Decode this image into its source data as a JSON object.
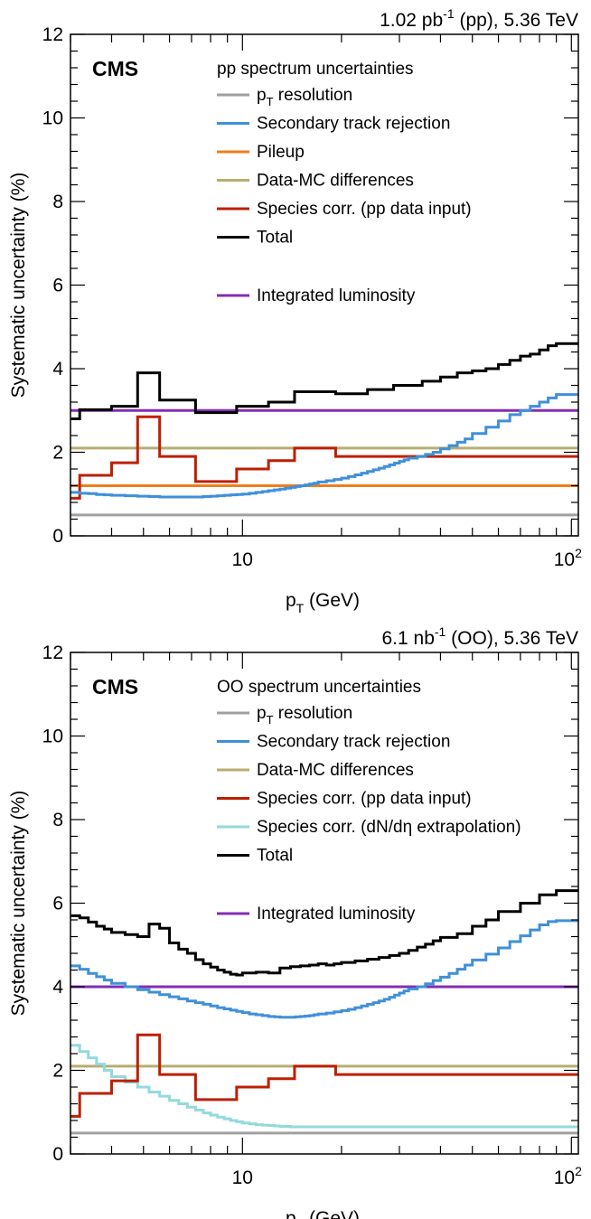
{
  "colors": {
    "pt_resolution": "#a0a0a0",
    "secondary": "#3f90da",
    "pileup": "#f07d1c",
    "datamc": "#b9ac70",
    "species_pp": "#bd1f01",
    "species_dndeta": "#92dadd",
    "total": "#000000",
    "lumi": "#832db6"
  },
  "chart_data": [
    {
      "type": "line",
      "experiment": "CMS",
      "lumi_label": "1.02 pb",
      "lumi_exponent": "-1",
      "lumi_suffix": " (pp), 5.36 TeV",
      "legend_title": "pp spectrum uncertainties",
      "xlabel_main": "p",
      "xlabel_sub": "T",
      "xlabel_unit": " (GeV)",
      "ylabel": "Systematic uncertainty (%)",
      "xscale": "log",
      "xlim": [
        3.0,
        105
      ],
      "ylim": [
        0,
        12
      ],
      "xticks": [
        {
          "v": 10,
          "label": "10"
        }
      ],
      "xtick_100": {
        "base": "10",
        "exp": "2"
      },
      "yticks": [
        0,
        2,
        4,
        6,
        8,
        10,
        12
      ],
      "legend": [
        {
          "key": "pt_resolution",
          "label_main": "p",
          "label_sub": "T",
          "label_rest": " resolution"
        },
        {
          "key": "secondary",
          "label": "Secondary track rejection"
        },
        {
          "key": "pileup",
          "label": "Pileup"
        },
        {
          "key": "datamc",
          "label": "Data-MC differences"
        },
        {
          "key": "species_pp",
          "label": "Species corr. (pp data input)"
        },
        {
          "key": "total",
          "label": "Total"
        },
        {
          "key": "lumi",
          "label": "Integrated luminosity",
          "gap": true
        }
      ],
      "series": [
        {
          "key": "pt_resolution",
          "kind": "flat",
          "y": 0.5
        },
        {
          "key": "pileup",
          "kind": "flat",
          "y": 1.2
        },
        {
          "key": "datamc",
          "kind": "flat",
          "y": 2.1
        },
        {
          "key": "lumi",
          "kind": "flat",
          "y": 3.0
        },
        {
          "key": "species_pp",
          "kind": "step",
          "edges": [
            3.0,
            3.2,
            4.0,
            4.8,
            5.6,
            7.2,
            9.6,
            12.0,
            14.4,
            19.2,
            24.0,
            28.8,
            35.2,
            48.0,
            105
          ],
          "values": [
            0.9,
            1.45,
            1.75,
            2.85,
            1.9,
            1.3,
            1.6,
            1.8,
            2.1,
            1.9,
            1.9,
            1.9,
            1.9,
            1.9
          ]
        },
        {
          "key": "secondary",
          "kind": "step",
          "edges": [
            3.0,
            3.2,
            3.4,
            3.6,
            3.8,
            4.0,
            4.4,
            4.8,
            5.2,
            5.6,
            6.0,
            6.4,
            6.8,
            7.2,
            7.6,
            8.0,
            8.4,
            8.8,
            9.2,
            9.6,
            10.0,
            10.5,
            11.0,
            11.5,
            12.0,
            12.5,
            13.0,
            13.5,
            14.0,
            14.5,
            15.0,
            15.5,
            16.0,
            16.5,
            17.0,
            18.0,
            19.0,
            20.0,
            21.0,
            22.0,
            23.0,
            24.0,
            25.0,
            26.0,
            27.0,
            28.0,
            29.0,
            30.0,
            31.0,
            32.0,
            34.0,
            36.0,
            38.0,
            40.0,
            42.5,
            45.0,
            47.5,
            50.0,
            55.0,
            60.0,
            65.0,
            70.0,
            75.0,
            80.0,
            85.0,
            90.0,
            95.0,
            105
          ],
          "values": [
            1.04,
            1.02,
            1.01,
            0.99,
            0.98,
            0.97,
            0.96,
            0.95,
            0.94,
            0.93,
            0.93,
            0.93,
            0.93,
            0.93,
            0.94,
            0.95,
            0.96,
            0.97,
            0.98,
            0.99,
            1.0,
            1.02,
            1.04,
            1.06,
            1.08,
            1.1,
            1.12,
            1.14,
            1.16,
            1.18,
            1.2,
            1.22,
            1.24,
            1.26,
            1.29,
            1.32,
            1.35,
            1.38,
            1.42,
            1.46,
            1.5,
            1.54,
            1.58,
            1.62,
            1.66,
            1.7,
            1.74,
            1.78,
            1.82,
            1.86,
            1.9,
            1.95,
            2.0,
            2.08,
            2.16,
            2.24,
            2.32,
            2.45,
            2.6,
            2.75,
            2.9,
            3.0,
            3.1,
            3.2,
            3.3,
            3.38,
            3.38
          ]
        },
        {
          "key": "total",
          "kind": "step",
          "edges": [
            3.0,
            3.2,
            4.0,
            4.8,
            5.6,
            7.2,
            9.6,
            12.0,
            14.4,
            19.2,
            24.0,
            28.8,
            35.2,
            40.0,
            45.0,
            50.0,
            55.0,
            60.0,
            65.0,
            70.0,
            75.0,
            80.0,
            85.0,
            90.0,
            105
          ],
          "values": [
            2.8,
            3.02,
            3.1,
            3.9,
            3.25,
            2.95,
            3.1,
            3.2,
            3.45,
            3.4,
            3.5,
            3.6,
            3.7,
            3.8,
            3.9,
            3.95,
            4.0,
            4.1,
            4.2,
            4.3,
            4.35,
            4.45,
            4.55,
            4.6
          ]
        }
      ]
    },
    {
      "type": "line",
      "experiment": "CMS",
      "lumi_label": "6.1 nb",
      "lumi_exponent": "-1",
      "lumi_suffix": " (OO), 5.36 TeV",
      "legend_title": "OO spectrum uncertainties",
      "xlabel_main": "p",
      "xlabel_sub": "T",
      "xlabel_unit": " (GeV)",
      "ylabel": "Systematic uncertainty (%)",
      "xscale": "log",
      "xlim": [
        3.0,
        105
      ],
      "ylim": [
        0,
        12
      ],
      "xticks": [
        {
          "v": 10,
          "label": "10"
        }
      ],
      "xtick_100": {
        "base": "10",
        "exp": "2"
      },
      "yticks": [
        0,
        2,
        4,
        6,
        8,
        10,
        12
      ],
      "legend": [
        {
          "key": "pt_resolution",
          "label_main": "p",
          "label_sub": "T",
          "label_rest": " resolution"
        },
        {
          "key": "secondary",
          "label": "Secondary track rejection"
        },
        {
          "key": "datamc",
          "label": "Data-MC differences"
        },
        {
          "key": "species_pp",
          "label": "Species corr. (pp data input)"
        },
        {
          "key": "species_dndeta",
          "label": "Species corr. (dN/dη extrapolation)"
        },
        {
          "key": "total",
          "label": "Total"
        },
        {
          "key": "lumi",
          "label": "Integrated luminosity",
          "gap": true
        }
      ],
      "series": [
        {
          "key": "pt_resolution",
          "kind": "flat",
          "y": 0.5
        },
        {
          "key": "datamc",
          "kind": "flat",
          "y": 2.1
        },
        {
          "key": "lumi",
          "kind": "flat",
          "y": 4.0
        },
        {
          "key": "species_dndeta",
          "kind": "step",
          "edges": [
            3.0,
            3.2,
            3.4,
            3.6,
            3.8,
            4.0,
            4.4,
            4.8,
            5.2,
            5.6,
            6.0,
            6.4,
            6.8,
            7.2,
            7.6,
            8.0,
            8.4,
            8.8,
            9.2,
            9.6,
            10.0,
            10.5,
            11.0,
            11.5,
            12.0,
            12.5,
            13.0,
            14.0,
            105
          ],
          "values": [
            2.6,
            2.45,
            2.3,
            2.15,
            2.0,
            1.85,
            1.72,
            1.6,
            1.48,
            1.38,
            1.28,
            1.2,
            1.12,
            1.05,
            0.98,
            0.93,
            0.88,
            0.84,
            0.8,
            0.77,
            0.74,
            0.72,
            0.7,
            0.69,
            0.68,
            0.67,
            0.66,
            0.65
          ]
        },
        {
          "key": "species_pp",
          "kind": "step",
          "edges": [
            3.0,
            3.2,
            4.0,
            4.8,
            5.6,
            7.2,
            9.6,
            12.0,
            14.4,
            19.2,
            24.0,
            28.8,
            35.2,
            48.0,
            105
          ],
          "values": [
            0.9,
            1.45,
            1.75,
            2.85,
            1.9,
            1.3,
            1.6,
            1.8,
            2.1,
            1.9,
            1.9,
            1.9,
            1.9,
            1.9
          ]
        },
        {
          "key": "secondary",
          "kind": "step",
          "edges": [
            3.0,
            3.2,
            3.4,
            3.6,
            3.8,
            4.0,
            4.4,
            4.8,
            5.2,
            5.6,
            6.0,
            6.4,
            6.8,
            7.2,
            7.6,
            8.0,
            8.4,
            8.8,
            9.2,
            9.6,
            10.0,
            10.5,
            11.0,
            11.5,
            12.0,
            12.5,
            13.0,
            13.5,
            14.0,
            14.5,
            15.0,
            15.5,
            16.0,
            16.5,
            17.0,
            18.0,
            19.0,
            20.0,
            21.0,
            22.0,
            23.0,
            24.0,
            25.0,
            26.0,
            27.0,
            28.0,
            29.0,
            30.0,
            31.0,
            32.0,
            34.0,
            36.0,
            38.0,
            40.0,
            42.5,
            45.0,
            47.5,
            50.0,
            55.0,
            60.0,
            65.0,
            70.0,
            75.0,
            80.0,
            85.0,
            90.0,
            95.0,
            105
          ],
          "values": [
            4.5,
            4.42,
            4.32,
            4.24,
            4.16,
            4.08,
            4.0,
            3.93,
            3.87,
            3.81,
            3.76,
            3.71,
            3.66,
            3.62,
            3.58,
            3.54,
            3.5,
            3.47,
            3.44,
            3.41,
            3.38,
            3.35,
            3.33,
            3.31,
            3.29,
            3.28,
            3.27,
            3.27,
            3.27,
            3.28,
            3.29,
            3.3,
            3.31,
            3.33,
            3.35,
            3.37,
            3.4,
            3.43,
            3.46,
            3.5,
            3.54,
            3.58,
            3.62,
            3.66,
            3.7,
            3.75,
            3.8,
            3.85,
            3.9,
            3.95,
            4.0,
            4.07,
            4.15,
            4.23,
            4.32,
            4.42,
            4.52,
            4.64,
            4.78,
            4.93,
            5.08,
            5.22,
            5.36,
            5.48,
            5.56,
            5.58,
            5.58
          ]
        },
        {
          "key": "total",
          "kind": "step",
          "edges": [
            3.0,
            3.2,
            3.4,
            3.6,
            3.8,
            4.0,
            4.4,
            4.8,
            5.2,
            5.6,
            6.0,
            6.4,
            6.8,
            7.2,
            7.6,
            8.0,
            8.4,
            8.8,
            9.2,
            9.6,
            10.0,
            11.0,
            12.0,
            13.0,
            14.0,
            15.0,
            16.0,
            17.0,
            18.0,
            19.0,
            20.0,
            22.0,
            24.0,
            26.0,
            28.0,
            30.0,
            32.0,
            34.0,
            36.0,
            38.0,
            40.0,
            45.0,
            50.0,
            55.0,
            60.0,
            70.0,
            80.0,
            90.0,
            105
          ],
          "values": [
            5.7,
            5.65,
            5.55,
            5.45,
            5.38,
            5.3,
            5.25,
            5.2,
            5.5,
            5.4,
            5.05,
            4.9,
            4.8,
            4.65,
            4.55,
            4.47,
            4.4,
            4.35,
            4.3,
            4.28,
            4.33,
            4.35,
            4.33,
            4.45,
            4.48,
            4.5,
            4.52,
            4.55,
            4.52,
            4.55,
            4.58,
            4.62,
            4.66,
            4.7,
            4.75,
            4.8,
            4.87,
            4.95,
            5.02,
            5.1,
            5.18,
            5.27,
            5.45,
            5.6,
            5.8,
            6.0,
            6.2,
            6.3
          ]
        }
      ]
    }
  ]
}
